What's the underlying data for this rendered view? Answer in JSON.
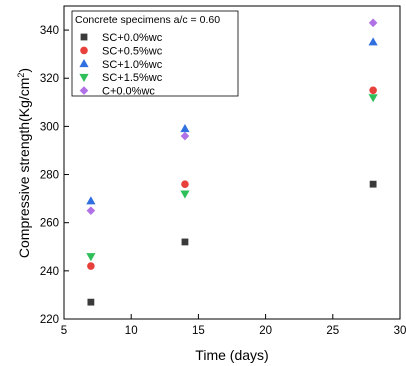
{
  "chart_data": {
    "type": "scatter",
    "x_label": "Time (days)",
    "y_label_main": "Compressive strength(Kg/cm",
    "y_label_sup": "2",
    "y_label_close": ")",
    "legend_title": "Concrete specimens a/c = 0.60",
    "x_range": [
      5,
      30
    ],
    "y_range": [
      220,
      350
    ],
    "x_ticks": [
      5,
      10,
      15,
      20,
      25,
      30
    ],
    "y_ticks": [
      220,
      240,
      260,
      280,
      300,
      320,
      340
    ],
    "legend_placement": "top-left",
    "grid": false,
    "series": [
      {
        "name": "SC+0.0%wc",
        "marker": "square",
        "color": "#3a3a3a",
        "points": [
          {
            "x": 7,
            "y": 227
          },
          {
            "x": 14,
            "y": 252
          },
          {
            "x": 28,
            "y": 276
          }
        ]
      },
      {
        "name": "SC+0.5%wc",
        "marker": "circle",
        "color": "#e8413c",
        "points": [
          {
            "x": 7,
            "y": 242
          },
          {
            "x": 14,
            "y": 276
          },
          {
            "x": 28,
            "y": 315
          }
        ]
      },
      {
        "name": "SC+1.0%wc",
        "marker": "triangle-up",
        "color": "#2f6fe0",
        "points": [
          {
            "x": 7,
            "y": 269
          },
          {
            "x": 14,
            "y": 299
          },
          {
            "x": 28,
            "y": 335
          }
        ]
      },
      {
        "name": "SC+1.5%wc",
        "marker": "triangle-down",
        "color": "#2fbf5a",
        "points": [
          {
            "x": 7,
            "y": 246
          },
          {
            "x": 14,
            "y": 272
          },
          {
            "x": 28,
            "y": 312
          }
        ]
      },
      {
        "name": "C+0.0%wc",
        "marker": "diamond",
        "color": "#b071e6",
        "points": [
          {
            "x": 7,
            "y": 265
          },
          {
            "x": 14,
            "y": 296
          },
          {
            "x": 28,
            "y": 343
          }
        ]
      }
    ]
  }
}
